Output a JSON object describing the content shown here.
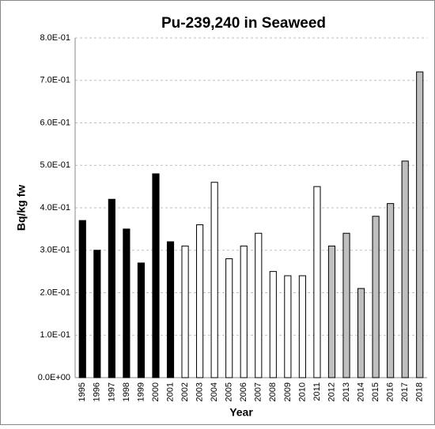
{
  "chart_data": {
    "type": "bar",
    "title": "Pu-239,240 in Seaweed",
    "x_label": "Year",
    "y_label": "Bq/kg fw",
    "categories": [
      "1995",
      "1996",
      "1997",
      "1998",
      "1999",
      "2000",
      "2001",
      "2002",
      "2003",
      "2004",
      "2005",
      "2006",
      "2007",
      "2008",
      "2009",
      "2010",
      "2011",
      "2012",
      "2013",
      "2014",
      "2015",
      "2016",
      "2017",
      "2018"
    ],
    "values": [
      0.37,
      0.3,
      0.42,
      0.35,
      0.27,
      0.48,
      0.32,
      0.31,
      0.36,
      0.46,
      0.28,
      0.31,
      0.34,
      0.25,
      0.24,
      0.24,
      0.45,
      0.31,
      0.34,
      0.21,
      0.38,
      0.41,
      0.51,
      0.72
    ],
    "colors": [
      "#000000",
      "#000000",
      "#000000",
      "#000000",
      "#000000",
      "#000000",
      "#000000",
      "#ffffff",
      "#ffffff",
      "#ffffff",
      "#ffffff",
      "#ffffff",
      "#ffffff",
      "#ffffff",
      "#ffffff",
      "#ffffff",
      "#ffffff",
      "#bfbfbf",
      "#bfbfbf",
      "#bfbfbf",
      "#bfbfbf",
      "#bfbfbf",
      "#bfbfbf",
      "#bfbfbf"
    ],
    "ylim": [
      0,
      0.8
    ],
    "yticks": [
      {
        "value": 0,
        "label": "0.0E+00"
      },
      {
        "value": 0.1,
        "label": "1.0E-01"
      },
      {
        "value": 0.2,
        "label": "2.0E-01"
      },
      {
        "value": 0.3,
        "label": "3.0E-01"
      },
      {
        "value": 0.4,
        "label": "4.0E-01"
      },
      {
        "value": 0.5,
        "label": "5.0E-01"
      },
      {
        "value": 0.6,
        "label": "6.0E-01"
      },
      {
        "value": 0.7,
        "label": "7.0E-01"
      },
      {
        "value": 0.8,
        "label": "8.0E-01"
      }
    ],
    "grid": true
  }
}
